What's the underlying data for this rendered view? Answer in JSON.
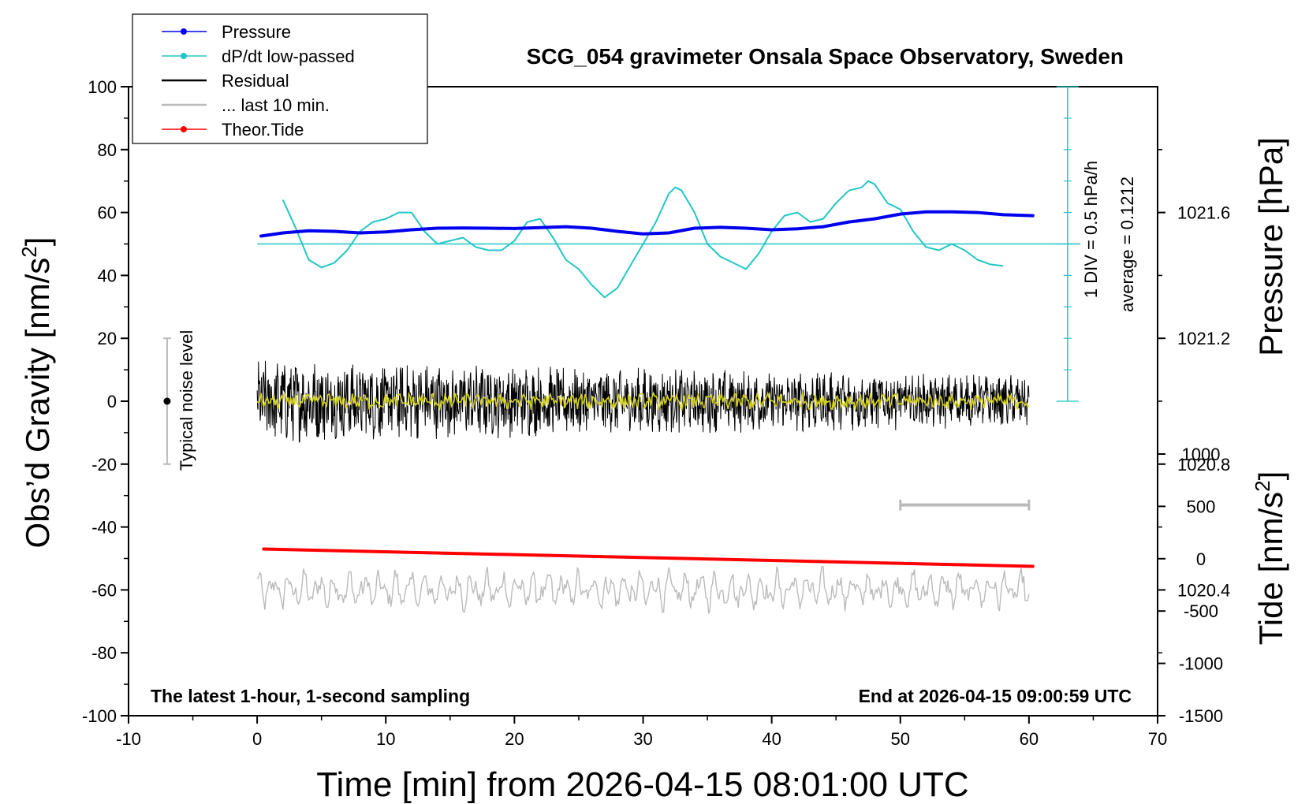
{
  "chart_data": {
    "type": "line",
    "title": "SCG_054 gravimeter Onsala Space Observatory, Sweden",
    "xlabel": "Time [min] from 2026-04-15 08:01:00 UTC",
    "ylabel_left": "Obs’d Gravity [nm/s",
    "ylabel_left_sup": "2",
    "ylabel_left_end": "]",
    "ylabel_right_top": "Pressure [hPa]",
    "ylabel_right_bottom": "Tide [nm/s",
    "ylabel_right_bottom_sup": "2",
    "ylabel_right_bottom_end": "]",
    "xlim": [
      -10,
      70
    ],
    "ylim": [
      -100,
      100
    ],
    "pressure_axis": {
      "range": [
        1020.0,
        1022.0
      ],
      "ticks": [
        "1020.4",
        "1020.8",
        "1021.2",
        "1021.6"
      ]
    },
    "tide_axis": {
      "range": [
        -1500,
        1000
      ],
      "ticks": [
        "1000",
        "500",
        "0",
        "-500",
        "-1000",
        "-1500"
      ]
    },
    "x_ticks": [
      "-10",
      "0",
      "10",
      "20",
      "30",
      "40",
      "50",
      "60",
      "70"
    ],
    "y_ticks": [
      "100",
      "80",
      "60",
      "40",
      "20",
      "0",
      "-20",
      "-40",
      "-60",
      "-80",
      "-100"
    ],
    "bottom_left_note": "The latest 1-hour, 1-second sampling",
    "bottom_right_note": "End at 2026-04-15 09:00:59 UTC",
    "noise_label": "Typical noise level",
    "noise_level": {
      "x": -7,
      "center": 0,
      "range": [
        -20,
        20
      ]
    },
    "dpdt_scale_label": "1 DIV = 0.5 hPa/h",
    "dpdt_average_label": "average = 0.1212",
    "dpdt_baseline": 50,
    "last10_bar": {
      "x": [
        50,
        60
      ],
      "y": -33
    },
    "legend": [
      {
        "label": "Pressure",
        "color": "#0000ee",
        "marker": true
      },
      {
        "label": "dP/dt low-passed",
        "color": "#22c6c6",
        "marker": true
      },
      {
        "label": "Residual",
        "color": "#000000",
        "marker": false
      },
      {
        "label": "... last 10 min.",
        "color": "#bbbbbb",
        "marker": false
      },
      {
        "label": "Theor.Tide",
        "color": "#ff0000",
        "marker": true
      }
    ],
    "series": [
      {
        "name": "Pressure",
        "color": "#0000ee",
        "x": [
          0.3,
          2,
          4,
          6,
          8,
          10,
          12,
          14,
          16,
          18,
          20,
          22,
          24,
          26,
          28,
          30,
          32,
          34,
          36,
          38,
          40,
          42,
          44,
          46,
          48,
          50,
          52,
          54,
          56,
          58,
          60.3
        ],
        "y": [
          52.5,
          53.5,
          54.2,
          54,
          53.5,
          53.8,
          54.5,
          55,
          55.1,
          55,
          54.9,
          55.2,
          55.5,
          55,
          54,
          53.2,
          53.5,
          55,
          55.3,
          55,
          54.5,
          54.8,
          55.5,
          57,
          58,
          59.5,
          60.2,
          60.2,
          60,
          59.3,
          59
        ]
      },
      {
        "name": "dP/dt low-passed",
        "color": "#22c6c6",
        "x": [
          2,
          3,
          4,
          5,
          6,
          7,
          8,
          9,
          10,
          11,
          12,
          13,
          14,
          15,
          16,
          17,
          18,
          19,
          20,
          21,
          22,
          23,
          24,
          25,
          26,
          27,
          28,
          29,
          30,
          31,
          32,
          32.5,
          33,
          34,
          35,
          36,
          37,
          38,
          39,
          40,
          41,
          42,
          43,
          44,
          45,
          46,
          47,
          47.5,
          48,
          49,
          50,
          51,
          52,
          53,
          54,
          55,
          56,
          57,
          58
        ],
        "y": [
          64,
          55,
          45,
          42.5,
          44,
          48,
          54,
          57,
          58,
          60,
          60,
          54,
          50,
          51,
          52,
          49,
          48,
          48,
          51,
          57,
          58,
          52,
          45,
          42,
          37,
          33,
          36,
          43,
          50,
          57,
          66,
          68,
          67,
          60,
          50,
          46,
          44,
          42,
          47,
          54,
          59,
          60,
          57,
          58,
          63,
          67,
          68,
          70,
          69,
          63,
          61,
          54,
          49,
          48,
          50,
          48,
          45,
          43.5,
          43
        ]
      },
      {
        "name": "Residual",
        "color": "#000000",
        "x": [
          0,
          60
        ],
        "y": [
          0,
          0
        ]
      },
      {
        "name": "... last 10 min.",
        "color": "#bbbbbb",
        "x": [
          0,
          60
        ],
        "y": [
          -60,
          -60
        ]
      },
      {
        "name": "Theor.Tide",
        "color": "#ff0000",
        "x": [
          0.5,
          60.3
        ],
        "y": [
          -47,
          -52.5
        ]
      }
    ]
  }
}
